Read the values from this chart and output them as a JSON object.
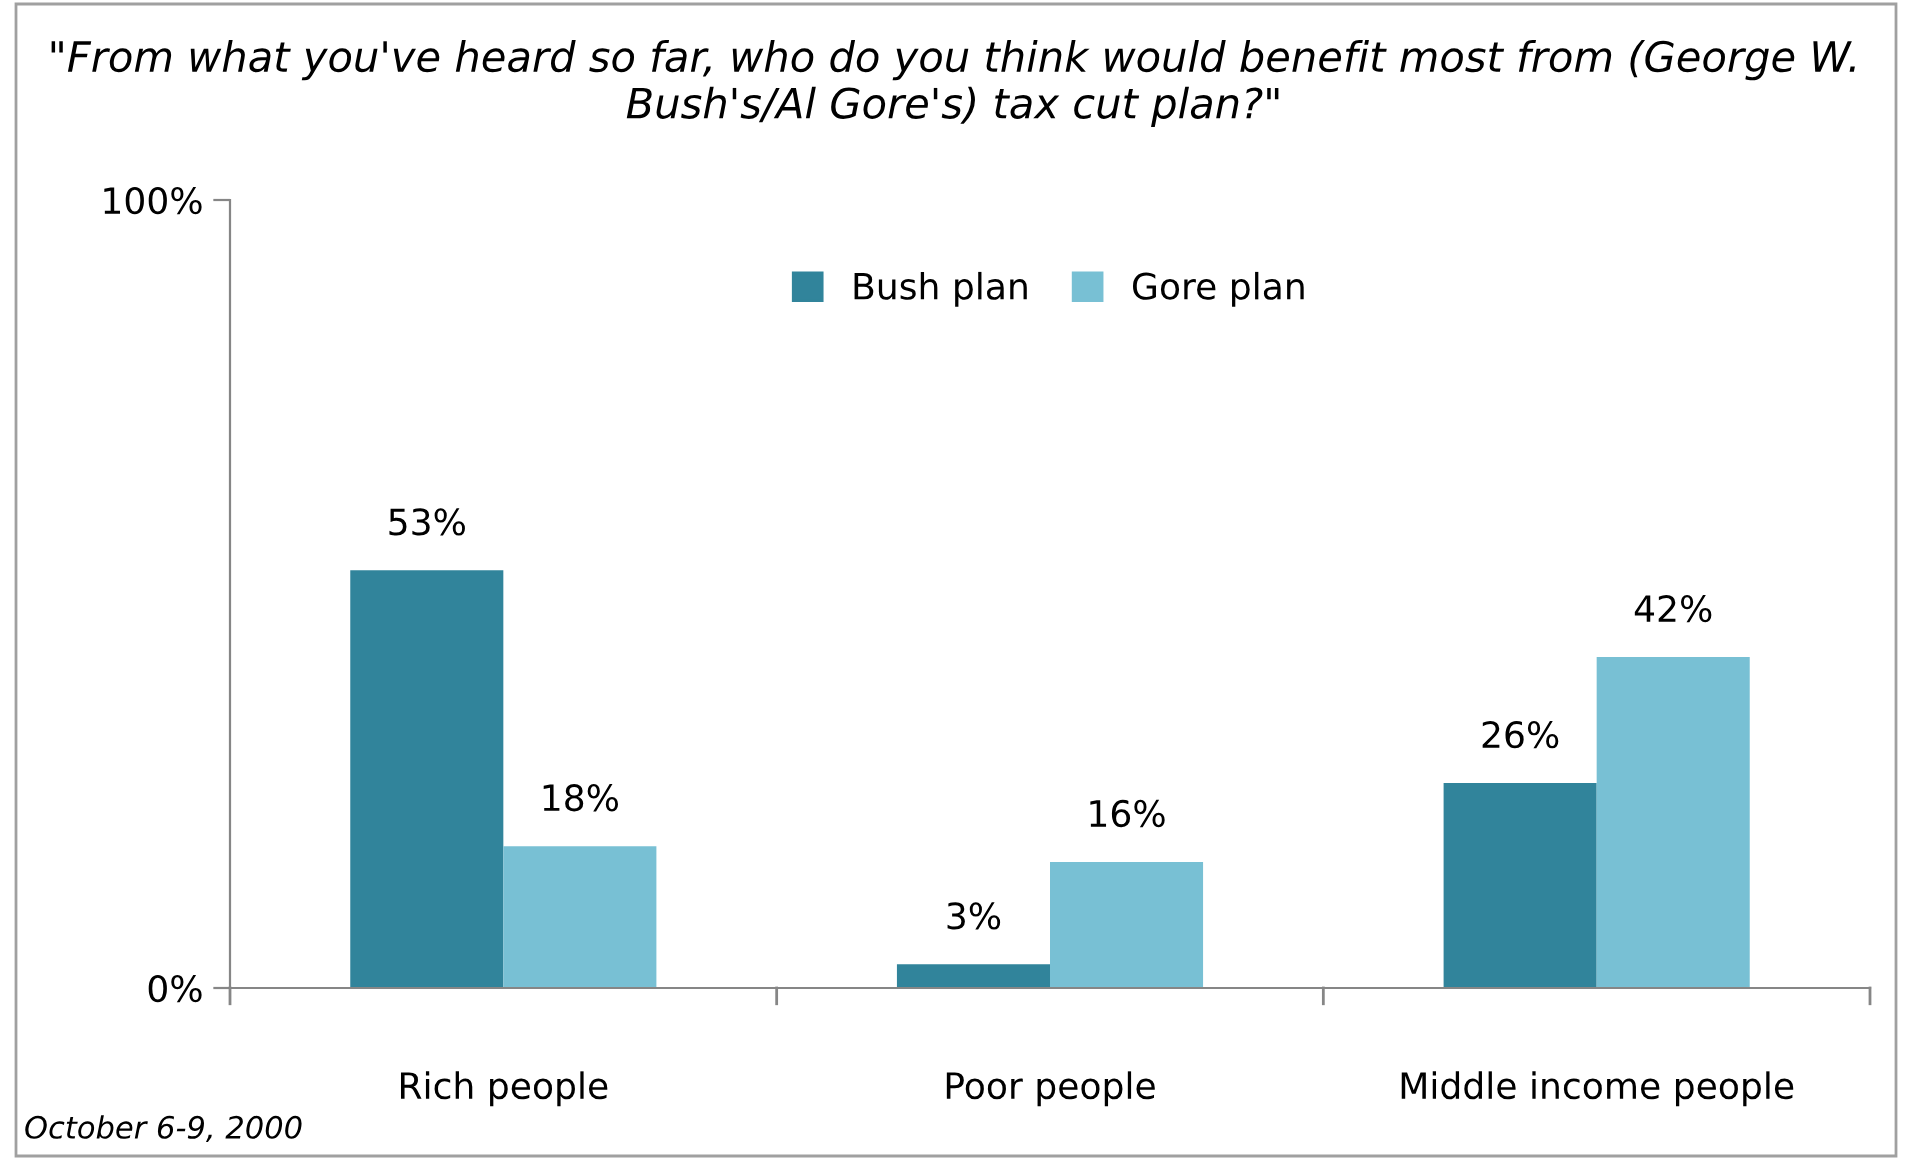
{
  "chart_data": {
    "type": "bar",
    "title": "\"From what you've heard so far, who do you think would benefit most from (George W. Bush's/Al Gore's) tax cut plan?\"",
    "categories": [
      "Rich people",
      "Poor people",
      "Middle income people"
    ],
    "series": [
      {
        "name": "Bush plan",
        "color": "#31849b",
        "values": [
          53,
          3,
          26
        ],
        "value_labels": [
          "53%",
          "3%",
          "26%"
        ]
      },
      {
        "name": "Gore plan",
        "color": "#78c0d4",
        "values": [
          18,
          16,
          42
        ],
        "value_labels": [
          "18%",
          "16%",
          "42%"
        ]
      }
    ],
    "ylim": [
      0,
      100
    ],
    "yticks": [
      {
        "value": 0,
        "label": "0%"
      },
      {
        "value": 100,
        "label": "100%"
      }
    ],
    "grid": false,
    "legend": "top",
    "annotations": [
      "October 6-9, 2000"
    ]
  }
}
